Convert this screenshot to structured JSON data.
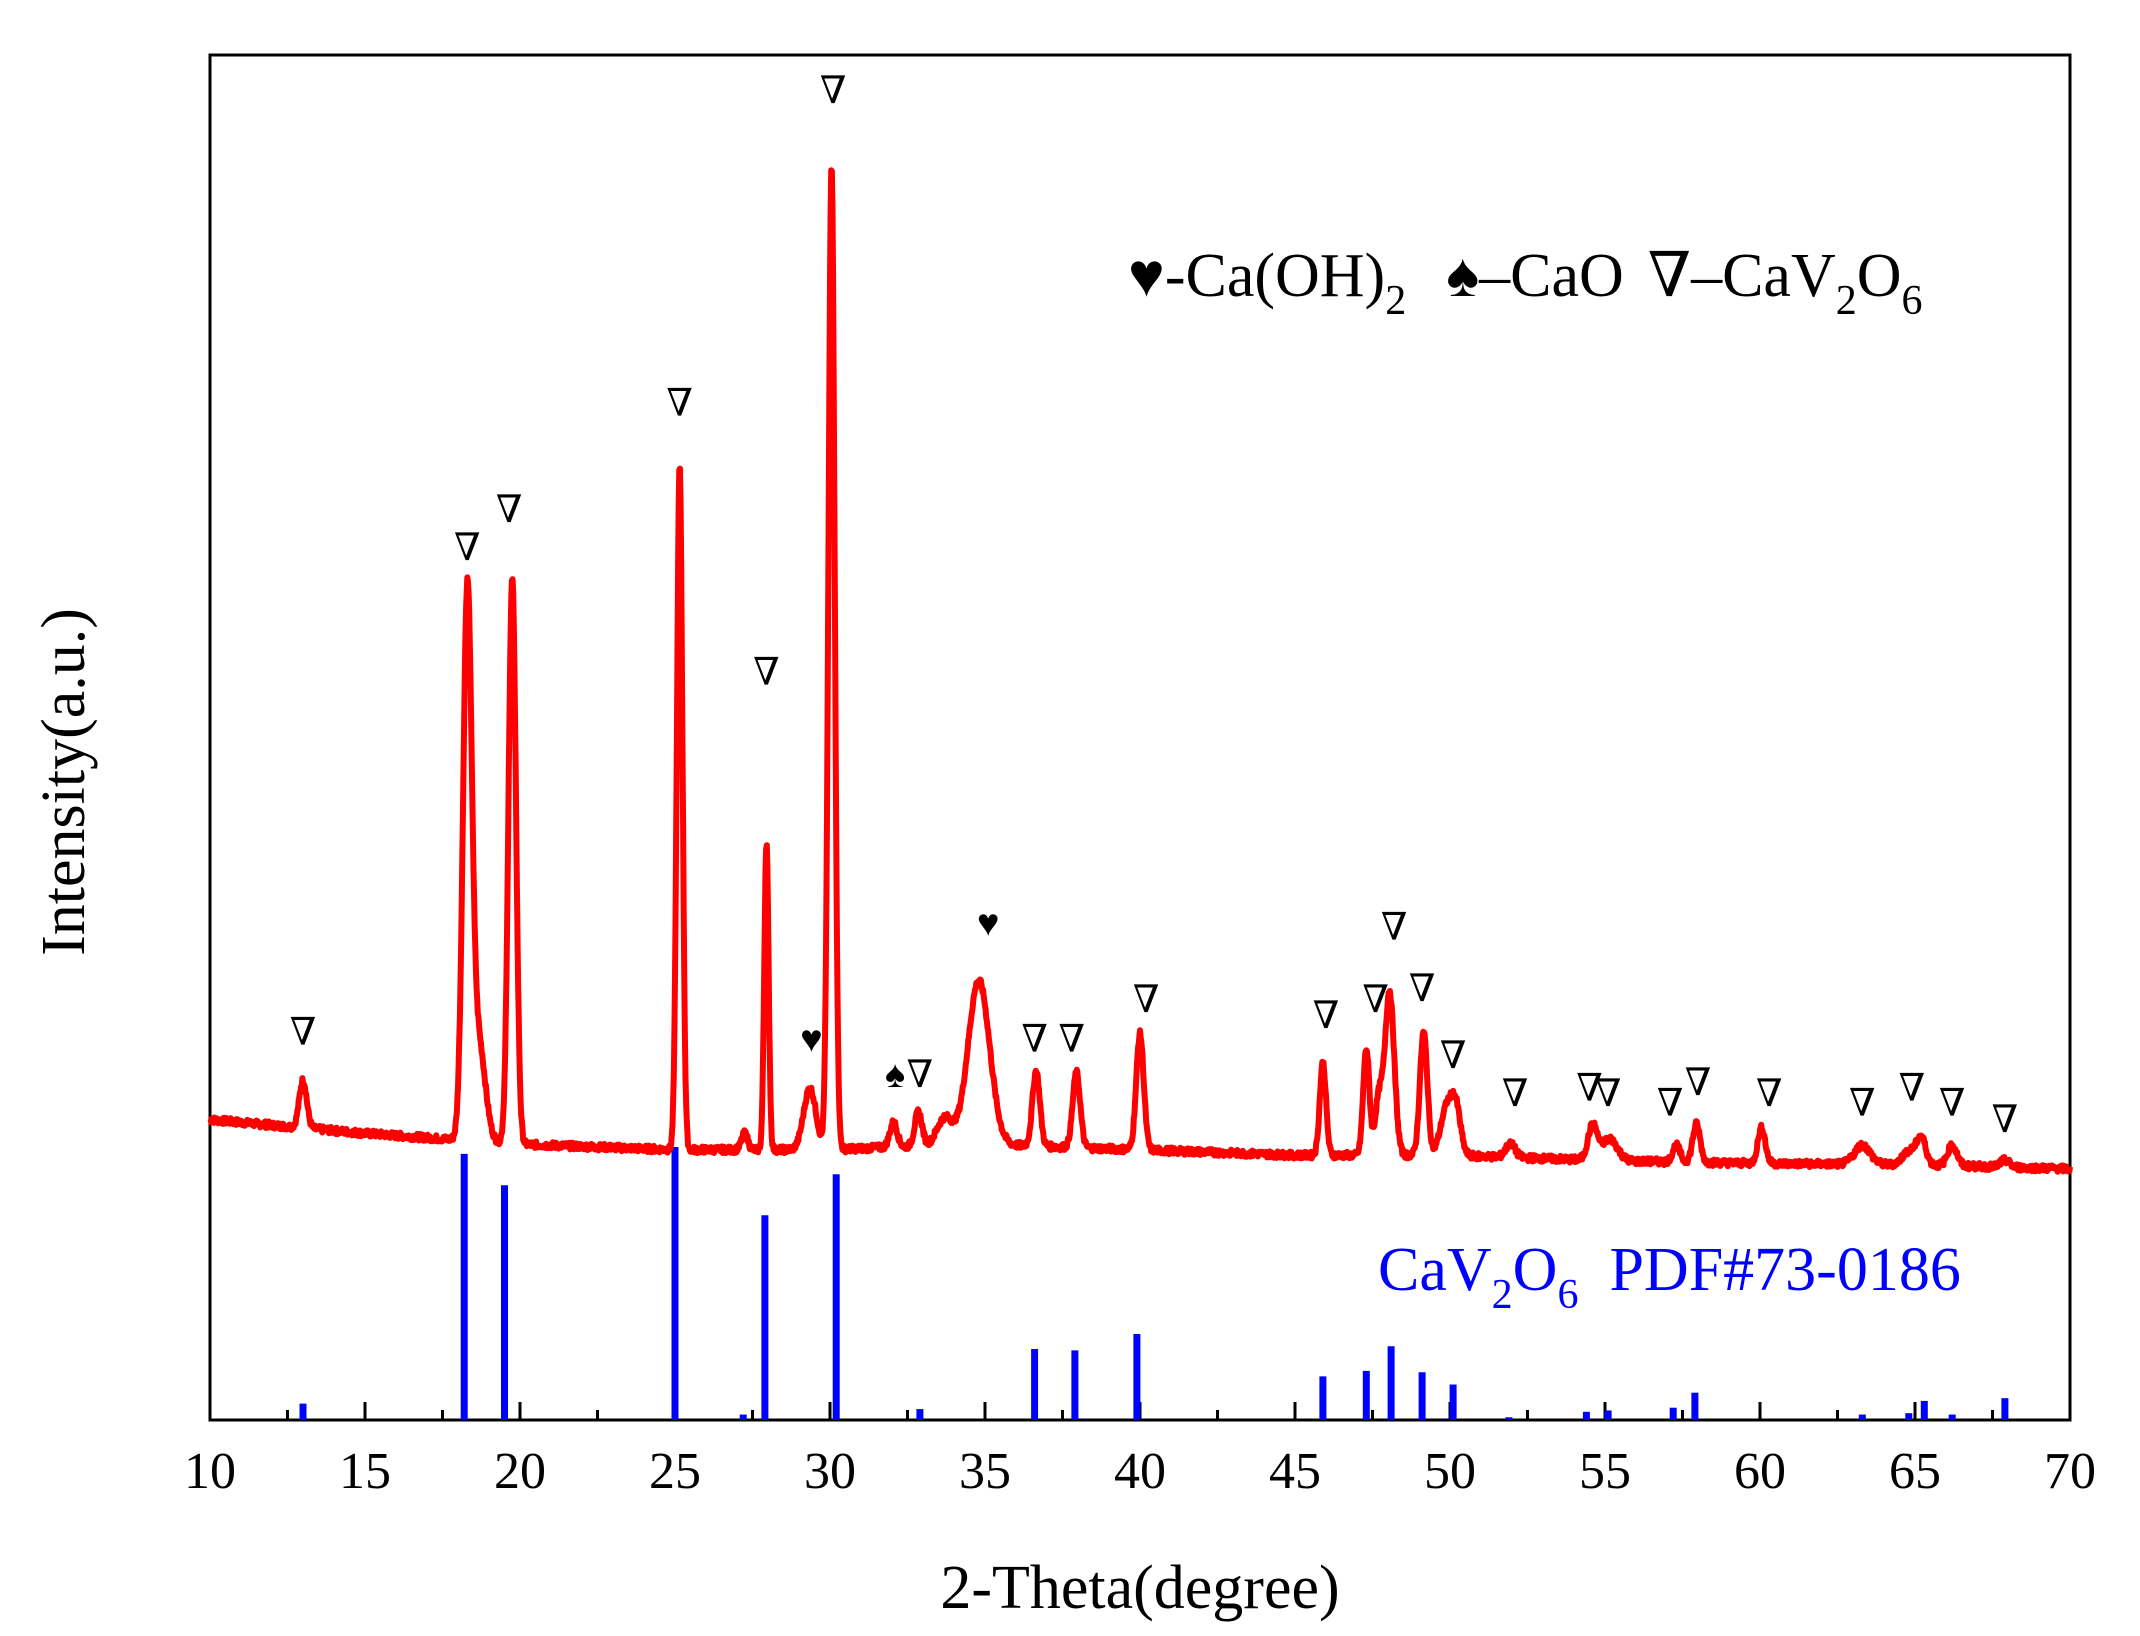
{
  "chart_data": {
    "type": "line",
    "xlabel": "2-Theta(degree)",
    "ylabel": "Intensity(a.u.)",
    "xlim": [
      10,
      70
    ],
    "ylim": [
      0,
      100
    ],
    "xticks": [
      10,
      15,
      20,
      25,
      30,
      35,
      40,
      45,
      50,
      55,
      60,
      65,
      70
    ],
    "xtick_labels": [
      "10",
      "15",
      "20",
      "25",
      "30",
      "35",
      "40",
      "45",
      "50",
      "55",
      "60",
      "65",
      "70"
    ],
    "colors": {
      "pattern": "#ff0000",
      "reference": "#0000ff",
      "axis": "#000000",
      "marker": "#000000"
    },
    "legend": [
      {
        "symbol": "♥",
        "text": "-Ca(OH)",
        "sub": "2"
      },
      {
        "symbol": "♠",
        "text": "–CaO",
        "sub": ""
      },
      {
        "symbol": "∇",
        "text": "–CaV",
        "sub": "2",
        "text2": "O",
        "sub2": "6"
      }
    ],
    "reference_label": {
      "main": "CaV",
      "sub1": "2",
      "mid": "O",
      "sub2": "6",
      "tail": "  PDF#73-0186"
    },
    "baseline": [
      [
        10,
        22.0
      ],
      [
        15,
        21.0
      ],
      [
        20,
        20.2
      ],
      [
        25,
        19.8
      ],
      [
        30,
        19.8
      ],
      [
        32,
        20.0
      ],
      [
        35,
        20.2
      ],
      [
        40,
        19.8
      ],
      [
        45,
        19.4
      ],
      [
        50,
        19.4
      ],
      [
        55,
        19.0
      ],
      [
        60,
        18.8
      ],
      [
        65,
        18.7
      ],
      [
        70,
        18.4
      ]
    ],
    "peaks": [
      {
        "x": 13.0,
        "h": 3.5,
        "w": 0.12
      },
      {
        "x": 18.3,
        "h": 39.0,
        "w": 0.14
      },
      {
        "x": 18.65,
        "h": 7.5,
        "w": 0.22
      },
      {
        "x": 19.75,
        "h": 41.5,
        "w": 0.12
      },
      {
        "x": 25.15,
        "h": 50.0,
        "w": 0.09
      },
      {
        "x": 27.25,
        "h": 1.2,
        "w": 0.1
      },
      {
        "x": 27.95,
        "h": 22.5,
        "w": 0.07
      },
      {
        "x": 29.35,
        "h": 4.5,
        "w": 0.2
      },
      {
        "x": 30.05,
        "h": 72.0,
        "w": 0.1
      },
      {
        "x": 32.05,
        "h": 1.8,
        "w": 0.12
      },
      {
        "x": 32.85,
        "h": 2.5,
        "w": 0.12
      },
      {
        "x": 33.7,
        "h": 2.0,
        "w": 0.25
      },
      {
        "x": 34.8,
        "h": 12.0,
        "w": 0.35
      },
      {
        "x": 36.65,
        "h": 5.5,
        "w": 0.12
      },
      {
        "x": 37.95,
        "h": 5.5,
        "w": 0.12
      },
      {
        "x": 40.0,
        "h": 8.5,
        "w": 0.12
      },
      {
        "x": 45.9,
        "h": 6.8,
        "w": 0.1
      },
      {
        "x": 47.3,
        "h": 7.8,
        "w": 0.1
      },
      {
        "x": 47.7,
        "h": 4.0,
        "w": 0.12
      },
      {
        "x": 48.05,
        "h": 12.0,
        "w": 0.15
      },
      {
        "x": 49.15,
        "h": 9.0,
        "w": 0.12
      },
      {
        "x": 49.9,
        "h": 3.5,
        "w": 0.2
      },
      {
        "x": 50.2,
        "h": 3.0,
        "w": 0.15
      },
      {
        "x": 51.95,
        "h": 1.0,
        "w": 0.15
      },
      {
        "x": 54.6,
        "h": 2.5,
        "w": 0.15
      },
      {
        "x": 55.15,
        "h": 1.6,
        "w": 0.25
      },
      {
        "x": 57.3,
        "h": 1.2,
        "w": 0.12
      },
      {
        "x": 57.95,
        "h": 2.8,
        "w": 0.12
      },
      {
        "x": 60.05,
        "h": 2.6,
        "w": 0.12
      },
      {
        "x": 63.3,
        "h": 1.4,
        "w": 0.25
      },
      {
        "x": 64.8,
        "h": 1.0,
        "w": 0.2
      },
      {
        "x": 65.2,
        "h": 2.0,
        "w": 0.15
      },
      {
        "x": 66.2,
        "h": 1.5,
        "w": 0.15
      },
      {
        "x": 67.9,
        "h": 0.5,
        "w": 0.15
      }
    ],
    "reference_lines": [
      {
        "x": 13.0,
        "h": 1.2
      },
      {
        "x": 18.2,
        "h": 19.5
      },
      {
        "x": 19.5,
        "h": 17.2
      },
      {
        "x": 25.0,
        "h": 20.0
      },
      {
        "x": 27.2,
        "h": 0.4
      },
      {
        "x": 27.9,
        "h": 15.0
      },
      {
        "x": 30.2,
        "h": 18.0
      },
      {
        "x": 32.9,
        "h": 0.8
      },
      {
        "x": 36.6,
        "h": 5.2
      },
      {
        "x": 37.9,
        "h": 5.1
      },
      {
        "x": 39.9,
        "h": 6.3
      },
      {
        "x": 45.9,
        "h": 3.2
      },
      {
        "x": 47.3,
        "h": 3.6
      },
      {
        "x": 48.1,
        "h": 5.4
      },
      {
        "x": 49.1,
        "h": 3.5
      },
      {
        "x": 50.1,
        "h": 2.6
      },
      {
        "x": 51.9,
        "h": 0.2
      },
      {
        "x": 54.4,
        "h": 0.6
      },
      {
        "x": 55.1,
        "h": 0.7
      },
      {
        "x": 57.2,
        "h": 0.9
      },
      {
        "x": 57.9,
        "h": 2.0
      },
      {
        "x": 63.3,
        "h": 0.4
      },
      {
        "x": 64.8,
        "h": 0.5
      },
      {
        "x": 65.3,
        "h": 1.4
      },
      {
        "x": 66.2,
        "h": 0.4
      },
      {
        "x": 67.9,
        "h": 1.6
      }
    ],
    "annotations": [
      {
        "symbol": "∇",
        "x": 13.0,
        "y": 27.5
      },
      {
        "symbol": "∇",
        "x": 18.3,
        "y": 63.0
      },
      {
        "symbol": "∇",
        "x": 19.65,
        "y": 65.8
      },
      {
        "symbol": "∇",
        "x": 25.15,
        "y": 73.6
      },
      {
        "symbol": "∇",
        "x": 27.95,
        "y": 53.9
      },
      {
        "symbol": "∇",
        "x": 30.1,
        "y": 96.5
      },
      {
        "symbol": "♥",
        "x": 29.4,
        "y": 27.0
      },
      {
        "symbol": "♠",
        "x": 32.1,
        "y": 24.4
      },
      {
        "symbol": "∇",
        "x": 32.9,
        "y": 24.4
      },
      {
        "symbol": "♥",
        "x": 35.1,
        "y": 35.5
      },
      {
        "symbol": "∇",
        "x": 36.6,
        "y": 27.0
      },
      {
        "symbol": "∇",
        "x": 37.8,
        "y": 27.0
      },
      {
        "symbol": "∇",
        "x": 40.2,
        "y": 29.9
      },
      {
        "symbol": "∇",
        "x": 46.0,
        "y": 28.7
      },
      {
        "symbol": "∇",
        "x": 47.6,
        "y": 29.9
      },
      {
        "symbol": "∇",
        "x": 48.2,
        "y": 35.2
      },
      {
        "symbol": "∇",
        "x": 49.1,
        "y": 30.7
      },
      {
        "symbol": "∇",
        "x": 50.1,
        "y": 25.8
      },
      {
        "symbol": "∇",
        "x": 52.1,
        "y": 23.0
      },
      {
        "symbol": "∇",
        "x": 54.5,
        "y": 23.4
      },
      {
        "symbol": "∇",
        "x": 55.1,
        "y": 23.0
      },
      {
        "symbol": "∇",
        "x": 57.1,
        "y": 22.3
      },
      {
        "symbol": "∇",
        "x": 58.0,
        "y": 23.8
      },
      {
        "symbol": "∇",
        "x": 60.3,
        "y": 23.0
      },
      {
        "symbol": "∇",
        "x": 63.3,
        "y": 22.3
      },
      {
        "symbol": "∇",
        "x": 64.9,
        "y": 23.4
      },
      {
        "symbol": "∇",
        "x": 66.2,
        "y": 22.3
      },
      {
        "symbol": "∇",
        "x": 67.9,
        "y": 21.1
      }
    ]
  }
}
